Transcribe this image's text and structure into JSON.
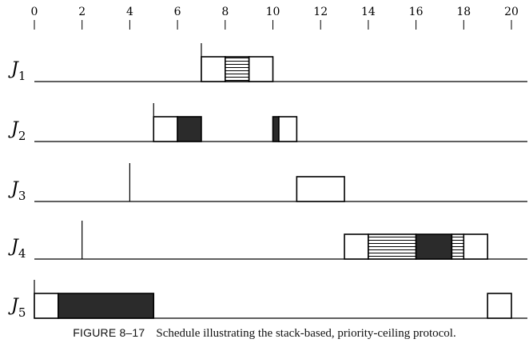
{
  "axis": {
    "ticks": [
      "0",
      "2",
      "4",
      "6",
      "8",
      "10",
      "12",
      "14",
      "16",
      "18",
      "20"
    ],
    "min": 0,
    "max": 20,
    "grid": false
  },
  "legend": {
    "segment_styles": {
      "plain": "white filled box",
      "striped": "horizontal hatching",
      "dark": "solid dark fill"
    }
  },
  "jobs": [
    {
      "name": "J",
      "subscript": "1",
      "release": 7,
      "segments": [
        {
          "start": 7,
          "end": 8,
          "style": "plain"
        },
        {
          "start": 8,
          "end": 9,
          "style": "striped"
        },
        {
          "start": 9,
          "end": 10,
          "style": "plain"
        }
      ]
    },
    {
      "name": "J",
      "subscript": "2",
      "release": 5,
      "segments": [
        {
          "start": 5,
          "end": 6,
          "style": "plain"
        },
        {
          "start": 6,
          "end": 7,
          "style": "dark"
        },
        {
          "start": 10,
          "end": 10.25,
          "style": "dark"
        },
        {
          "start": 10.25,
          "end": 11,
          "style": "plain"
        }
      ]
    },
    {
      "name": "J",
      "subscript": "3",
      "release": 4,
      "segments": [
        {
          "start": 11,
          "end": 13,
          "style": "plain"
        }
      ]
    },
    {
      "name": "J",
      "subscript": "4",
      "release": 2,
      "segments": [
        {
          "start": 13,
          "end": 14,
          "style": "plain"
        },
        {
          "start": 14,
          "end": 16,
          "style": "striped"
        },
        {
          "start": 16,
          "end": 17.5,
          "style": "dark"
        },
        {
          "start": 17.5,
          "end": 18,
          "style": "striped"
        },
        {
          "start": 18,
          "end": 19,
          "style": "plain"
        }
      ]
    },
    {
      "name": "J",
      "subscript": "5",
      "release": 0,
      "segments": [
        {
          "start": 0,
          "end": 1,
          "style": "plain"
        },
        {
          "start": 1,
          "end": 5,
          "style": "dark"
        },
        {
          "start": 19,
          "end": 20,
          "style": "plain"
        }
      ]
    }
  ],
  "caption": {
    "label": "FIGURE 8–17",
    "text": "Schedule illustrating the stack-based, priority-ceiling protocol."
  },
  "colors": {
    "ink": "#000000",
    "dark_fill": "#2b2b2b",
    "background": "#ffffff"
  }
}
